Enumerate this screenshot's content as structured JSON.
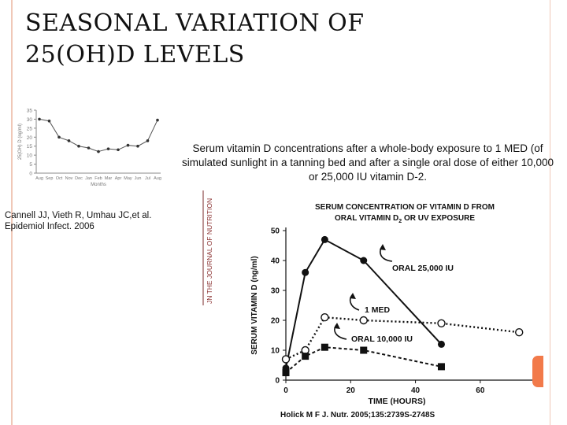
{
  "slide": {
    "title_lines": [
      "SEASONAL VARIATION OF",
      "25(OH)D LEVELS"
    ],
    "caption": "Serum vitamin D concentrations after a whole-body exposure to 1 MED (of simulated sunlight in a tanning bed and after a single oral dose of either 10,000 or 25,000 IU vitamin D-2.",
    "citation_lines": [
      "Cannell JJ, Vieth R, Umhau JC,et al.",
      "Epidemiol Infect. 2006"
    ],
    "journal_logo": "JN THE JOURNAL OF NUTRITION",
    "source": "Holick M F J. Nutr. 2005;135:2739S-2748S",
    "accent_color": "#f27a4a"
  },
  "chart_data": [
    {
      "type": "line",
      "title": "",
      "xlabel": "Months",
      "ylabel": "25(OH) D (ng/ml)",
      "categories": [
        "Aug",
        "Sep",
        "Oct",
        "Nov",
        "Dec",
        "Jan",
        "Feb",
        "Mar",
        "Apr",
        "May",
        "Jun",
        "Jul",
        "Aug"
      ],
      "series": [
        {
          "values": [
            30,
            29,
            20,
            18,
            15,
            14,
            12,
            13.5,
            13,
            15.5,
            15,
            18,
            29.5
          ]
        }
      ],
      "ylim": [
        0,
        35
      ],
      "yticks": [
        0,
        5,
        10,
        15,
        20,
        25,
        30,
        35
      ],
      "grid": false,
      "legend": "none"
    },
    {
      "type": "line",
      "title_lines": [
        "SERUM CONCENTRATION OF VITAMIN D FROM",
        "ORAL VITAMIN D",
        "2",
        " OR UV EXPOSURE"
      ],
      "xlabel": "TIME (HOURS)",
      "ylabel": "SERUM VITAMIN D (ng/ml)",
      "xlim": [
        0,
        70
      ],
      "ylim": [
        0,
        50
      ],
      "xticks": [
        0,
        20,
        40,
        60
      ],
      "yticks": [
        0,
        10,
        20,
        30,
        40,
        50
      ],
      "grid": false,
      "legend": "annotations",
      "series": [
        {
          "name": "ORAL 25,000 IU",
          "marker": "filled-circle",
          "line": "solid",
          "x": [
            0,
            6,
            12,
            24,
            48
          ],
          "y": [
            4,
            36,
            47,
            40,
            12
          ]
        },
        {
          "name": "1 MED",
          "marker": "open-circle",
          "line": "dotted",
          "x": [
            0,
            6,
            12,
            24,
            48,
            72
          ],
          "y": [
            7,
            10,
            21,
            20,
            19,
            16
          ]
        },
        {
          "name": "ORAL 10,000 IU",
          "marker": "filled-square",
          "line": "dashed",
          "x": [
            0,
            6,
            12,
            24,
            48
          ],
          "y": [
            2.5,
            8,
            11,
            10,
            4.5
          ]
        }
      ]
    }
  ]
}
